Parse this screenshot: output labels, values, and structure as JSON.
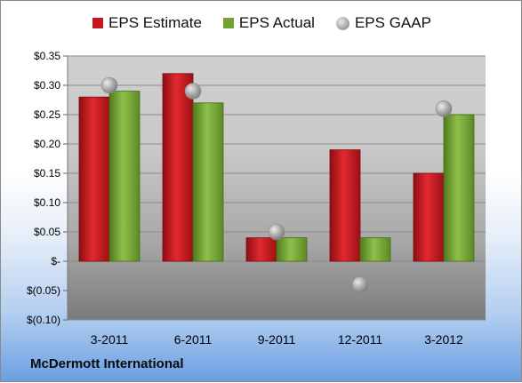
{
  "chart_data": {
    "type": "bar",
    "categories": [
      "3-2011",
      "6-2011",
      "9-2011",
      "12-2011",
      "3-2012"
    ],
    "series": [
      {
        "name": "EPS Estimate",
        "type": "bar",
        "color": "#c4161c",
        "values": [
          0.28,
          0.32,
          0.04,
          0.19,
          0.15
        ]
      },
      {
        "name": "EPS Actual",
        "type": "bar",
        "color": "#74a232",
        "values": [
          0.29,
          0.27,
          0.04,
          0.04,
          0.25
        ]
      },
      {
        "name": "EPS GAAP",
        "type": "scatter",
        "color": "#a6a6a6",
        "values": [
          0.3,
          0.29,
          0.05,
          -0.04,
          0.26
        ]
      }
    ],
    "ylim": [
      -0.1,
      0.35
    ],
    "yticks": [
      0.35,
      0.3,
      0.25,
      0.2,
      0.15,
      0.1,
      0.05,
      0,
      -0.05,
      -0.1
    ],
    "ytick_labels": [
      "$0.35",
      "$0.30",
      "$0.25",
      "$0.20",
      "$0.15",
      "$0.10",
      "$0.05",
      "$-",
      "$(0.05)",
      "$(0.10)"
    ],
    "grid": true,
    "legend_position": "top-center",
    "source_label": "McDermott International"
  },
  "legend": {
    "estimate_label": "EPS Estimate",
    "actual_label": "EPS Actual",
    "gaap_label": "EPS GAAP"
  }
}
